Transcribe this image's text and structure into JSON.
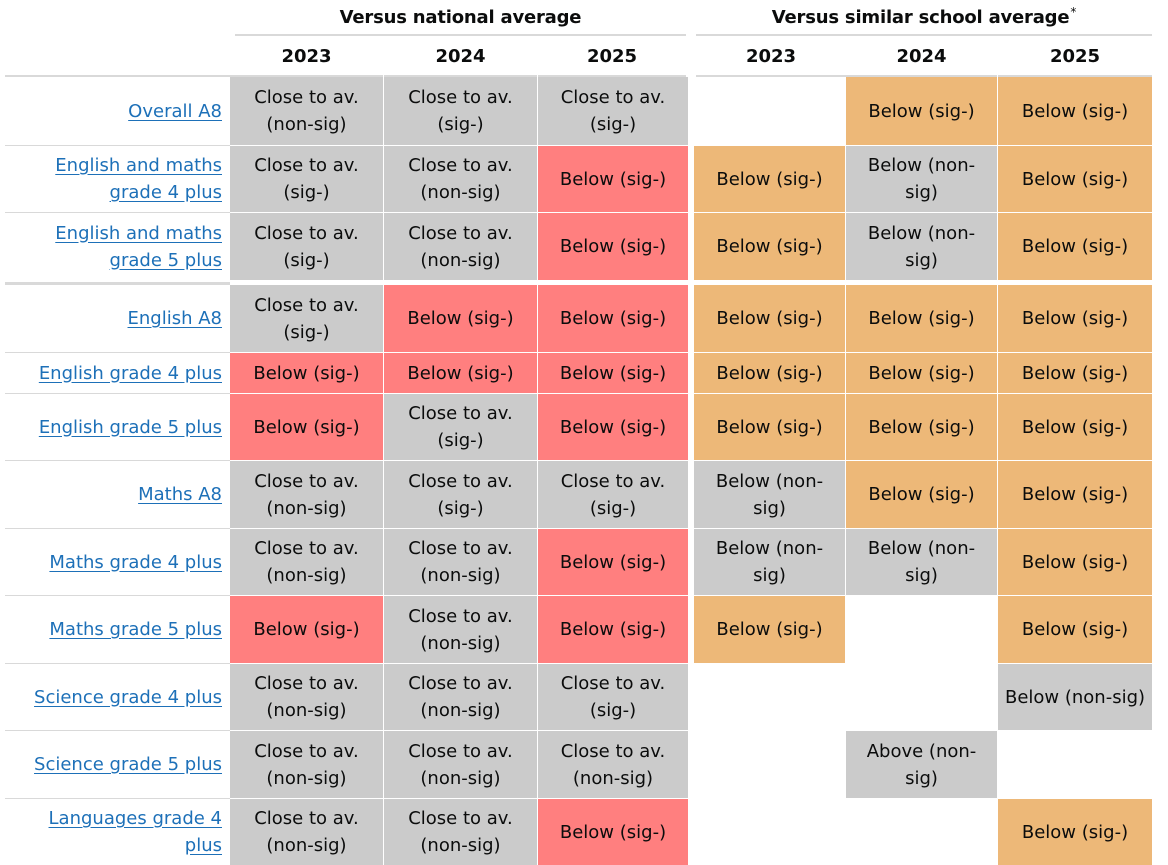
{
  "group_headers": {
    "national": "Versus national average",
    "similar": "Versus similar school average",
    "similar_note_marker": "*"
  },
  "years": [
    "2023",
    "2024",
    "2025"
  ],
  "colors": {
    "close": "#cbcbcb",
    "below_sig_national": "#ff7f7f",
    "below_sig_similar": "#edb878",
    "non_sig_similar": "#cbcbcb",
    "link": "#1d70b8"
  },
  "rows": [
    {
      "label": "Overall A8",
      "national": [
        {
          "text": "Close to av. (non-sig)",
          "style": "close"
        },
        {
          "text": "Close to av. (sig-)",
          "style": "close"
        },
        {
          "text": "Close to av. (sig-)",
          "style": "close"
        }
      ],
      "similar": [
        {
          "text": "",
          "style": "empty"
        },
        {
          "text": "Below (sig-)",
          "style": "orange"
        },
        {
          "text": "Below (sig-)",
          "style": "orange"
        }
      ]
    },
    {
      "label": "English and maths grade 4 plus",
      "national": [
        {
          "text": "Close to av. (sig-)",
          "style": "close"
        },
        {
          "text": "Close to av. (non-sig)",
          "style": "close"
        },
        {
          "text": "Below (sig-)",
          "style": "red"
        }
      ],
      "similar": [
        {
          "text": "Below (sig-)",
          "style": "orange"
        },
        {
          "text": "Below (non-sig)",
          "style": "grey"
        },
        {
          "text": "Below (sig-)",
          "style": "orange"
        }
      ]
    },
    {
      "label": "English and maths grade 5 plus",
      "national": [
        {
          "text": "Close to av. (sig-)",
          "style": "close"
        },
        {
          "text": "Close to av. (non-sig)",
          "style": "close"
        },
        {
          "text": "Below (sig-)",
          "style": "red"
        }
      ],
      "similar": [
        {
          "text": "Below (sig-)",
          "style": "orange"
        },
        {
          "text": "Below (non-sig)",
          "style": "grey"
        },
        {
          "text": "Below (sig-)",
          "style": "orange"
        }
      ]
    },
    {
      "label": "English A8",
      "national": [
        {
          "text": "Close to av. (sig-)",
          "style": "close"
        },
        {
          "text": "Below (sig-)",
          "style": "red"
        },
        {
          "text": "Below (sig-)",
          "style": "red"
        }
      ],
      "similar": [
        {
          "text": "Below (sig-)",
          "style": "orange"
        },
        {
          "text": "Below (sig-)",
          "style": "orange"
        },
        {
          "text": "Below (sig-)",
          "style": "orange"
        }
      ]
    },
    {
      "label": "English grade 4 plus",
      "national": [
        {
          "text": "Below (sig-)",
          "style": "red"
        },
        {
          "text": "Below (sig-)",
          "style": "red"
        },
        {
          "text": "Below (sig-)",
          "style": "red"
        }
      ],
      "similar": [
        {
          "text": "Below (sig-)",
          "style": "orange"
        },
        {
          "text": "Below (sig-)",
          "style": "orange"
        },
        {
          "text": "Below (sig-)",
          "style": "orange"
        }
      ]
    },
    {
      "label": "English grade 5 plus",
      "national": [
        {
          "text": "Below (sig-)",
          "style": "red"
        },
        {
          "text": "Close to av. (sig-)",
          "style": "close"
        },
        {
          "text": "Below (sig-)",
          "style": "red"
        }
      ],
      "similar": [
        {
          "text": "Below (sig-)",
          "style": "orange"
        },
        {
          "text": "Below (sig-)",
          "style": "orange"
        },
        {
          "text": "Below (sig-)",
          "style": "orange"
        }
      ]
    },
    {
      "label": "Maths A8",
      "national": [
        {
          "text": "Close to av. (non-sig)",
          "style": "close"
        },
        {
          "text": "Close to av. (sig-)",
          "style": "close"
        },
        {
          "text": "Close to av. (sig-)",
          "style": "close"
        }
      ],
      "similar": [
        {
          "text": "Below (non-sig)",
          "style": "grey"
        },
        {
          "text": "Below (sig-)",
          "style": "orange"
        },
        {
          "text": "Below (sig-)",
          "style": "orange"
        }
      ]
    },
    {
      "label": "Maths grade 4 plus",
      "national": [
        {
          "text": "Close to av. (non-sig)",
          "style": "close"
        },
        {
          "text": "Close to av. (non-sig)",
          "style": "close"
        },
        {
          "text": "Below (sig-)",
          "style": "red"
        }
      ],
      "similar": [
        {
          "text": "Below (non-sig)",
          "style": "grey"
        },
        {
          "text": "Below (non-sig)",
          "style": "grey"
        },
        {
          "text": "Below (sig-)",
          "style": "orange"
        }
      ]
    },
    {
      "label": "Maths grade 5 plus",
      "national": [
        {
          "text": "Below (sig-)",
          "style": "red"
        },
        {
          "text": "Close to av. (non-sig)",
          "style": "close"
        },
        {
          "text": "Below (sig-)",
          "style": "red"
        }
      ],
      "similar": [
        {
          "text": "Below (sig-)",
          "style": "orange"
        },
        {
          "text": "",
          "style": "empty"
        },
        {
          "text": "Below (sig-)",
          "style": "orange"
        }
      ]
    },
    {
      "label": "Science grade 4 plus",
      "national": [
        {
          "text": "Close to av. (non-sig)",
          "style": "close"
        },
        {
          "text": "Close to av. (non-sig)",
          "style": "close"
        },
        {
          "text": "Close to av. (sig-)",
          "style": "close"
        }
      ],
      "similar": [
        {
          "text": "",
          "style": "empty"
        },
        {
          "text": "",
          "style": "empty"
        },
        {
          "text": "Below (non-sig)",
          "style": "grey"
        }
      ]
    },
    {
      "label": "Science grade 5 plus",
      "national": [
        {
          "text": "Close to av. (non-sig)",
          "style": "close"
        },
        {
          "text": "Close to av. (non-sig)",
          "style": "close"
        },
        {
          "text": "Close to av. (non-sig)",
          "style": "close"
        }
      ],
      "similar": [
        {
          "text": "",
          "style": "empty"
        },
        {
          "text": "Above (non-sig)",
          "style": "grey"
        },
        {
          "text": "",
          "style": "empty"
        }
      ]
    },
    {
      "label": "Languages grade 4 plus",
      "national": [
        {
          "text": "Close to av. (non-sig)",
          "style": "close"
        },
        {
          "text": "Close to av. (non-sig)",
          "style": "close"
        },
        {
          "text": "Below (sig-)",
          "style": "red"
        }
      ],
      "similar": [
        {
          "text": "",
          "style": "empty"
        },
        {
          "text": "",
          "style": "empty"
        },
        {
          "text": "Below (sig-)",
          "style": "orange"
        }
      ]
    }
  ]
}
